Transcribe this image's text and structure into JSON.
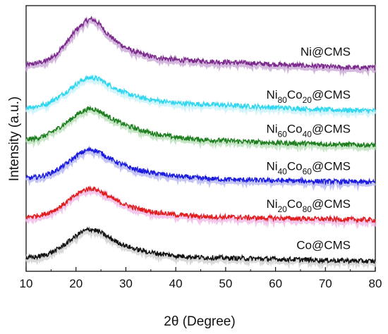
{
  "chart_data": {
    "type": "line",
    "xlabel": "2θ (Degree)",
    "ylabel": "Intensity (a.u.)",
    "xlim": [
      10,
      80
    ],
    "xticks": [
      10,
      20,
      30,
      40,
      50,
      60,
      70,
      80
    ],
    "y_tick_labels": false,
    "grid": false,
    "legend": "none",
    "series": [
      {
        "name": "Ni@CMS",
        "name_parts": [
          {
            "t": "Ni@CMS",
            "sub": false
          }
        ],
        "color": "#7b2a8c",
        "shadow": "#c9a6d6",
        "x": [
          10,
          12,
          14,
          16,
          18,
          20,
          21,
          22,
          23,
          24,
          25,
          26,
          28,
          30,
          32,
          35,
          40,
          45,
          50,
          55,
          60,
          65,
          70,
          75,
          80
        ],
        "y": [
          0.93,
          0.94,
          0.95,
          0.98,
          1.03,
          1.09,
          1.11,
          1.13,
          1.14,
          1.13,
          1.11,
          1.08,
          1.04,
          1.01,
          0.99,
          0.97,
          0.955,
          0.95,
          0.945,
          0.94,
          0.935,
          0.93,
          0.925,
          0.92,
          0.92
        ]
      },
      {
        "name": "Ni80Co20@CMS",
        "name_parts": [
          {
            "t": "Ni",
            "sub": false
          },
          {
            "t": "80",
            "sub": true
          },
          {
            "t": "Co",
            "sub": false
          },
          {
            "t": "20",
            "sub": true
          },
          {
            "t": "@CMS",
            "sub": false
          }
        ],
        "color": "#2fd6f0",
        "shadow": "#c6f2fa",
        "x": [
          10,
          12,
          14,
          16,
          18,
          20,
          21,
          22,
          23,
          24,
          25,
          26,
          28,
          30,
          32,
          35,
          40,
          45,
          50,
          55,
          60,
          65,
          70,
          75,
          80
        ],
        "y": [
          0.74,
          0.745,
          0.755,
          0.78,
          0.81,
          0.845,
          0.86,
          0.87,
          0.875,
          0.872,
          0.865,
          0.85,
          0.825,
          0.805,
          0.79,
          0.775,
          0.76,
          0.755,
          0.75,
          0.745,
          0.74,
          0.735,
          0.73,
          0.728,
          0.725
        ]
      },
      {
        "name": "Ni60Co40@CMS",
        "name_parts": [
          {
            "t": "Ni",
            "sub": false
          },
          {
            "t": "60",
            "sub": true
          },
          {
            "t": "Co",
            "sub": false
          },
          {
            "t": "40",
            "sub": true
          },
          {
            "t": "@CMS",
            "sub": false
          }
        ],
        "color": "#1e7d1e",
        "shadow": "#b9e0b9",
        "x": [
          10,
          12,
          14,
          16,
          18,
          20,
          21,
          22,
          23,
          24,
          25,
          26,
          28,
          30,
          32,
          35,
          40,
          45,
          50,
          55,
          60,
          65,
          70,
          75,
          80
        ],
        "y": [
          0.595,
          0.6,
          0.615,
          0.64,
          0.67,
          0.705,
          0.72,
          0.73,
          0.735,
          0.73,
          0.72,
          0.705,
          0.68,
          0.66,
          0.645,
          0.625,
          0.605,
          0.595,
          0.59,
          0.585,
          0.58,
          0.578,
          0.575,
          0.572,
          0.57
        ]
      },
      {
        "name": "Ni40Co60@CMS",
        "name_parts": [
          {
            "t": "Ni",
            "sub": false
          },
          {
            "t": "40",
            "sub": true
          },
          {
            "t": "Co",
            "sub": false
          },
          {
            "t": "60",
            "sub": true
          },
          {
            "t": "@CMS",
            "sub": false
          }
        ],
        "color": "#1a1adf",
        "shadow": "#b7b7f3",
        "x": [
          10,
          12,
          14,
          16,
          18,
          20,
          21,
          22,
          23,
          24,
          25,
          26,
          28,
          30,
          32,
          35,
          40,
          45,
          50,
          55,
          60,
          65,
          70,
          75,
          80
        ],
        "y": [
          0.42,
          0.425,
          0.435,
          0.455,
          0.485,
          0.52,
          0.535,
          0.545,
          0.55,
          0.545,
          0.535,
          0.52,
          0.495,
          0.475,
          0.46,
          0.445,
          0.43,
          0.42,
          0.415,
          0.412,
          0.41,
          0.408,
          0.406,
          0.404,
          0.402
        ]
      },
      {
        "name": "Ni20Co80@CMS",
        "name_parts": [
          {
            "t": "Ni",
            "sub": false
          },
          {
            "t": "20",
            "sub": true
          },
          {
            "t": "Co",
            "sub": false
          },
          {
            "t": "80",
            "sub": true
          },
          {
            "t": "@CMS",
            "sub": false
          }
        ],
        "color": "#e01c1c",
        "shadow": "#f1b8e6",
        "x": [
          10,
          12,
          14,
          16,
          18,
          20,
          21,
          22,
          23,
          24,
          25,
          26,
          28,
          30,
          32,
          35,
          40,
          45,
          50,
          55,
          60,
          65,
          70,
          75,
          80
        ],
        "y": [
          0.245,
          0.25,
          0.26,
          0.28,
          0.31,
          0.345,
          0.36,
          0.37,
          0.375,
          0.37,
          0.36,
          0.345,
          0.32,
          0.3,
          0.285,
          0.27,
          0.255,
          0.248,
          0.245,
          0.242,
          0.24,
          0.238,
          0.236,
          0.234,
          0.232
        ]
      },
      {
        "name": "Co@CMS",
        "name_parts": [
          {
            "t": "Co@CMS",
            "sub": false
          }
        ],
        "color": "#111111",
        "shadow": "#cfcfcf",
        "x": [
          10,
          12,
          14,
          16,
          18,
          20,
          21,
          22,
          23,
          24,
          25,
          26,
          28,
          30,
          32,
          35,
          40,
          45,
          50,
          55,
          60,
          65,
          70,
          75,
          80
        ],
        "y": [
          0.06,
          0.065,
          0.075,
          0.095,
          0.125,
          0.16,
          0.175,
          0.185,
          0.19,
          0.185,
          0.175,
          0.16,
          0.135,
          0.115,
          0.1,
          0.085,
          0.07,
          0.063,
          0.06,
          0.058,
          0.055,
          0.053,
          0.05,
          0.048,
          0.045
        ]
      }
    ]
  }
}
